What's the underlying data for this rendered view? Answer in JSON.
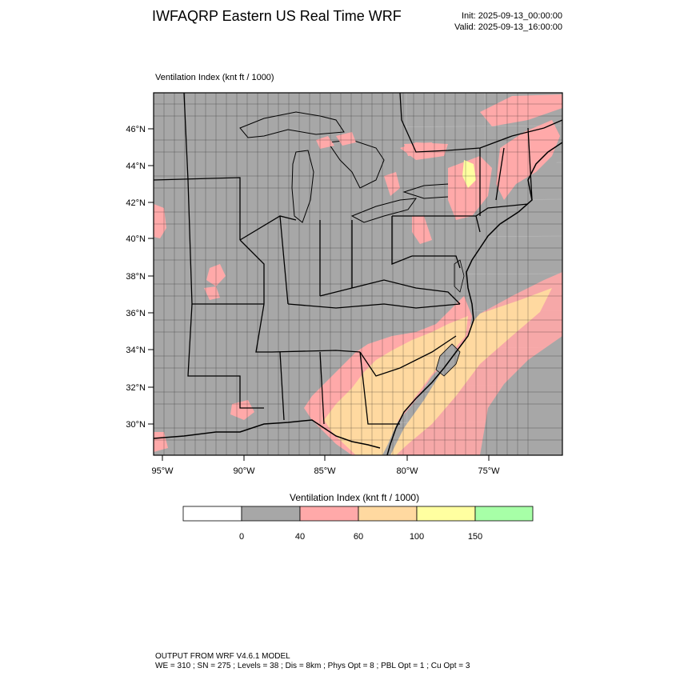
{
  "header": {
    "title": "IWFAQRP Eastern US Real Time WRF",
    "init": "Init: 2025-09-13_00:00:00",
    "valid": "Valid: 2025-09-13_16:00:00"
  },
  "map": {
    "field_title": "Ventilation Index   (knt ft / 1000)",
    "lat_labels": [
      "46°N",
      "44°N",
      "42°N",
      "40°N",
      "38°N",
      "36°N",
      "34°N",
      "32°N",
      "30°N"
    ],
    "lon_labels": [
      "95°W",
      "90°W",
      "85°W",
      "80°W",
      "75°W"
    ],
    "colors": {
      "ocean_land_low": "#a7a7a7",
      "band_40_60": "#ffa9a9",
      "band_60_100": "#ffd9a0",
      "band_100_150": "#ffffa0",
      "band_150_plus": "#a7ffa7",
      "band_below_0": "#ffffff"
    }
  },
  "colorbar": {
    "title": "Ventilation Index   (knt ft / 1000)",
    "tick_labels": [
      "0",
      "40",
      "60",
      "100",
      "150"
    ],
    "colors": [
      "#ffffff",
      "#a7a7a7",
      "#ffa9a9",
      "#ffd9a0",
      "#ffffa0",
      "#a7ffa7"
    ]
  },
  "footer": {
    "line1": "OUTPUT FROM WRF V4.6.1 MODEL",
    "line2": "WE = 310 ; SN = 275 ; Levels = 38 ; Dis = 8km ; Phys Opt = 8 ; PBL Opt = 1 ; Cu Opt = 3"
  }
}
